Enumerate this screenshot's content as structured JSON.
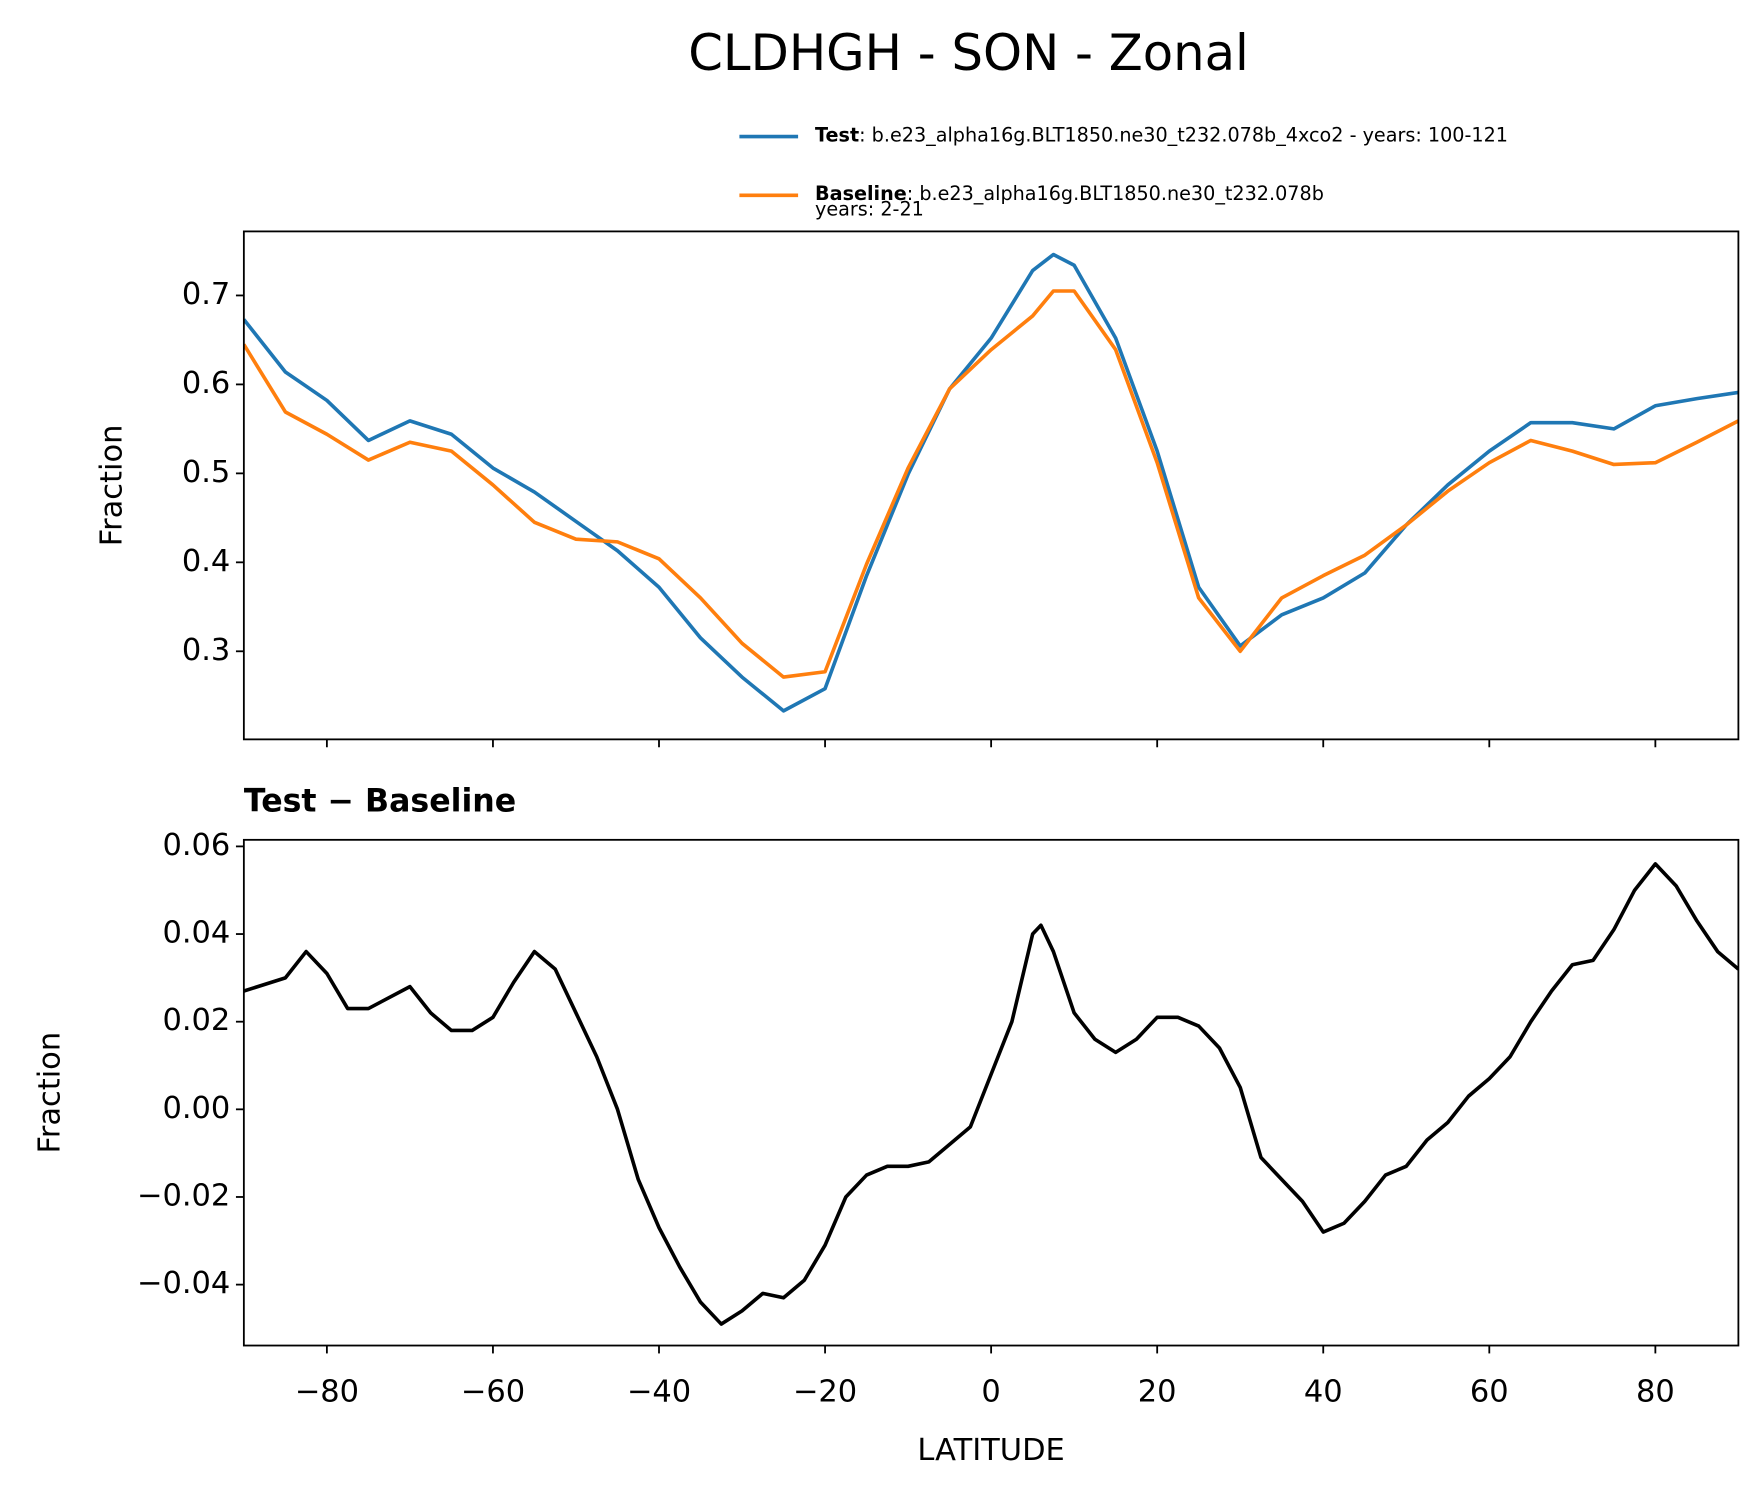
{
  "chart_data": [
    {
      "type": "line",
      "title": "CLDHGH - SON - Zonal",
      "ylabel": "Fraction",
      "x": [
        -90,
        -85,
        -80,
        -75,
        -70,
        -65,
        -60,
        -55,
        -50,
        -45,
        -40,
        -35,
        -30,
        -25,
        -20,
        -15,
        -10,
        -5,
        0,
        5,
        7.5,
        10,
        15,
        20,
        25,
        30,
        35,
        40,
        45,
        50,
        55,
        60,
        65,
        70,
        75,
        80,
        85,
        90
      ],
      "series": [
        {
          "name": "Test",
          "label": ": b.e23_alpha16g.BLT1850.ne30_t232.078b_4xco2 - years: 100-121",
          "color": "#1f77b4",
          "values": [
            0.673,
            0.614,
            0.582,
            0.537,
            0.559,
            0.544,
            0.506,
            0.479,
            0.446,
            0.413,
            0.372,
            0.315,
            0.271,
            0.233,
            0.258,
            0.385,
            0.499,
            0.595,
            0.652,
            0.728,
            0.746,
            0.734,
            0.652,
            0.525,
            0.372,
            0.306,
            0.341,
            0.36,
            0.388,
            0.442,
            0.487,
            0.525,
            0.557,
            0.557,
            0.55,
            0.576,
            0.584,
            0.591
          ]
        },
        {
          "name": "Baseline",
          "label": ": b.e23_alpha16g.BLT1850.ne30_t232.078b",
          "label2": "years: 2-21",
          "color": "#ff7f0e",
          "values": [
            0.645,
            0.569,
            0.544,
            0.515,
            0.535,
            0.525,
            0.487,
            0.445,
            0.426,
            0.423,
            0.404,
            0.36,
            0.309,
            0.271,
            0.277,
            0.398,
            0.506,
            0.595,
            0.639,
            0.677,
            0.705,
            0.705,
            0.639,
            0.512,
            0.36,
            0.3,
            0.36,
            0.385,
            0.408,
            0.442,
            0.48,
            0.512,
            0.537,
            0.525,
            0.51,
            0.512,
            0.535,
            0.559
          ]
        }
      ],
      "xlim": [
        -90,
        90
      ],
      "xticks": [
        -80,
        -60,
        -40,
        -20,
        0,
        20,
        40,
        60,
        80
      ],
      "ylim": [
        0.201,
        0.772
      ],
      "yticks": [
        0.3,
        0.4,
        0.5,
        0.6,
        0.7
      ]
    },
    {
      "type": "line",
      "title": "Test − Baseline",
      "ylabel": "Fraction",
      "xlabel": "LATITUDE",
      "x": [
        -90,
        -85,
        -82.5,
        -80,
        -77.5,
        -75,
        -70,
        -67.5,
        -65,
        -62.5,
        -60,
        -57.5,
        -55,
        -52.5,
        -50,
        -47.5,
        -45,
        -42.5,
        -40,
        -37.5,
        -35,
        -32.5,
        -30,
        -27.5,
        -25,
        -22.5,
        -20,
        -17.5,
        -15,
        -12.5,
        -10,
        -7.5,
        -5,
        -2.5,
        0,
        2.5,
        5,
        6,
        7.5,
        10,
        12.5,
        15,
        17.5,
        20,
        22.5,
        25,
        27.5,
        30,
        32.5,
        35,
        37.5,
        40,
        42.5,
        45,
        47.5,
        50,
        52.5,
        55,
        57.5,
        60,
        62.5,
        65,
        67.5,
        70,
        72.5,
        75,
        77.5,
        80,
        82.5,
        85,
        87.5,
        90
      ],
      "series": [
        {
          "name": "Test − Baseline",
          "color": "#000000",
          "values": [
            0.027,
            0.03,
            0.036,
            0.031,
            0.023,
            0.023,
            0.028,
            0.022,
            0.018,
            0.018,
            0.021,
            0.029,
            0.036,
            0.032,
            0.022,
            0.012,
            0.0,
            -0.016,
            -0.027,
            -0.036,
            -0.044,
            -0.049,
            -0.046,
            -0.042,
            -0.043,
            -0.039,
            -0.031,
            -0.02,
            -0.015,
            -0.013,
            -0.013,
            -0.012,
            -0.008,
            -0.004,
            0.008,
            0.02,
            0.04,
            0.042,
            0.036,
            0.022,
            0.016,
            0.013,
            0.016,
            0.021,
            0.021,
            0.019,
            0.014,
            0.005,
            -0.011,
            -0.016,
            -0.021,
            -0.028,
            -0.026,
            -0.021,
            -0.015,
            -0.013,
            -0.007,
            -0.003,
            0.003,
            0.007,
            0.012,
            0.02,
            0.027,
            0.033,
            0.034,
            0.041,
            0.05,
            0.056,
            0.051,
            0.043,
            0.036,
            0.032
          ]
        }
      ],
      "xlim": [
        -90,
        90
      ],
      "xticks": [
        {
          "value": -80,
          "label": "−80"
        },
        {
          "value": -60,
          "label": "−60"
        },
        {
          "value": -40,
          "label": "−40"
        },
        {
          "value": -20,
          "label": "−20"
        },
        0,
        20,
        40,
        60,
        80
      ],
      "ylim": [
        -0.0539,
        0.0615
      ],
      "yticks": [
        {
          "value": -0.04,
          "label": "−0.04"
        },
        {
          "value": -0.02,
          "label": "−0.02"
        },
        {
          "value": 0,
          "label": "0.00"
        },
        0.02,
        0.04,
        0.06
      ]
    }
  ]
}
